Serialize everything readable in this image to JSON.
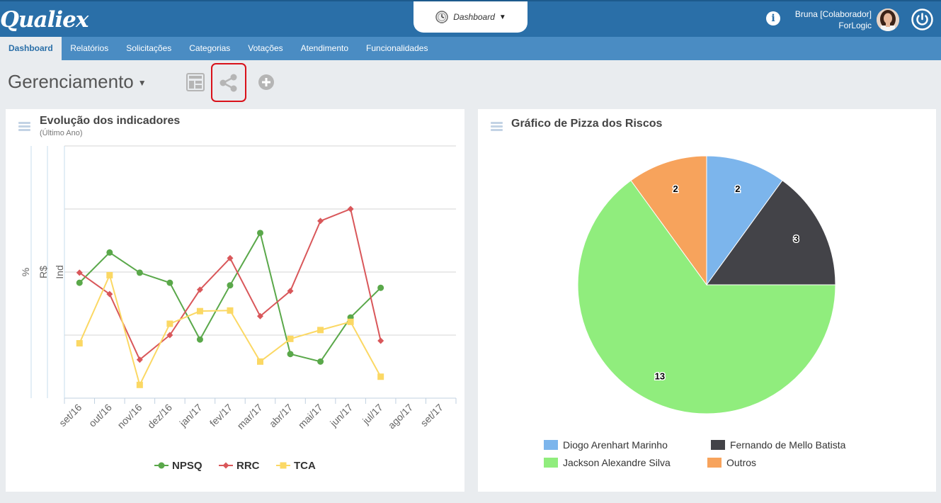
{
  "header": {
    "logo": "Qualiex",
    "dashboard_selector": "Dashboard",
    "info_icon": "info-icon",
    "user_name": "Bruna [Colaborador]",
    "user_company": "ForLogic"
  },
  "nav": {
    "items": [
      "Dashboard",
      "Relatórios",
      "Solicitações",
      "Categorias",
      "Votações",
      "Atendimento",
      "Funcionalidades"
    ],
    "active": "Dashboard"
  },
  "page": {
    "title": "Gerenciamento",
    "tools": [
      "layout-icon",
      "share-icon",
      "add-icon"
    ]
  },
  "colors": {
    "topbar": "#2a6fa8",
    "navbar": "#4a8cc3",
    "npsq": "#5aa84a",
    "rrc": "#d9575a",
    "tca": "#fbd864",
    "diogo": "#7cb5ec",
    "fernando": "#434348",
    "jackson": "#90ed7d",
    "outros": "#f7a35c",
    "highlight": "#d9111a"
  },
  "line_chart": {
    "title": "Evolução dos indicadores",
    "subtitle": "(Último Ano)",
    "axis_labels": [
      "%",
      "R$",
      "Ind"
    ]
  },
  "pie_chart": {
    "title": "Gráfico de Pizza dos Riscos"
  },
  "chart_data": [
    {
      "type": "line",
      "title": "Evolução dos indicadores",
      "subtitle": "(Último Ano)",
      "y_axis_titles": [
        "%",
        "R$",
        "Ind"
      ],
      "categories": [
        "set/16",
        "out/16",
        "nov/16",
        "dez/16",
        "jan/17",
        "fev/17",
        "mar/17",
        "abr/17",
        "mai/17",
        "jun/17",
        "jul/17",
        "ago/17",
        "set/17"
      ],
      "grid": true,
      "legend": "bottom",
      "series": [
        {
          "name": "NPSQ",
          "marker": "circle",
          "values": [
            1.83,
            2.31,
            1.99,
            1.83,
            0.93,
            1.79,
            2.62,
            0.7,
            0.58,
            1.28,
            1.75,
            null,
            null
          ]
        },
        {
          "name": "RRC",
          "marker": "diamond",
          "values": [
            1.99,
            1.65,
            0.61,
            1.0,
            1.72,
            2.22,
            1.3,
            1.7,
            2.81,
            3.0,
            0.91,
            null,
            null
          ]
        },
        {
          "name": "TCA",
          "marker": "square",
          "values": [
            0.87,
            1.95,
            0.21,
            1.18,
            1.38,
            1.39,
            0.58,
            0.94,
            1.08,
            1.21,
            0.34,
            null,
            null
          ]
        }
      ],
      "ylim": [
        0,
        4
      ]
    },
    {
      "type": "pie",
      "title": "Gráfico de Pizza dos Riscos",
      "legend": "bottom",
      "slices": [
        {
          "name": "Diogo Arenhart Marinho",
          "value": 2
        },
        {
          "name": "Fernando de Mello Batista",
          "value": 3
        },
        {
          "name": "Jackson Alexandre Silva",
          "value": 13
        },
        {
          "name": "Outros",
          "value": 2
        }
      ]
    }
  ]
}
